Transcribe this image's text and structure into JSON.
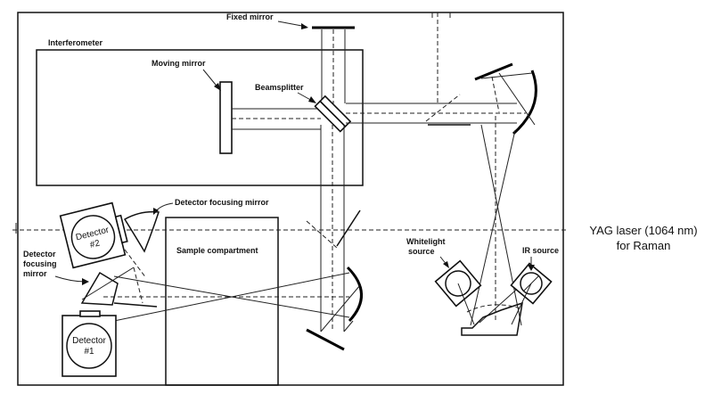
{
  "labels": {
    "fixed_mirror": "Fixed mirror",
    "interferometer": "Interferometer",
    "moving_mirror": "Moving mirror",
    "beamsplitter": "Beamsplitter",
    "detector_focusing_mirror_top": "Detector focusing mirror",
    "detector_2": [
      "Detector",
      "#2"
    ],
    "sample_compartment": "Sample compartment",
    "detector_focusing_mirror_left": [
      "Detector",
      "focusing",
      "mirror"
    ],
    "detector_1": [
      "Detector",
      "#1"
    ],
    "whitelight_source": [
      "Whitelight",
      "source"
    ],
    "ir_source": "IR source",
    "yag_laser": [
      "YAG laser (1064 nm)",
      "for Raman"
    ]
  }
}
